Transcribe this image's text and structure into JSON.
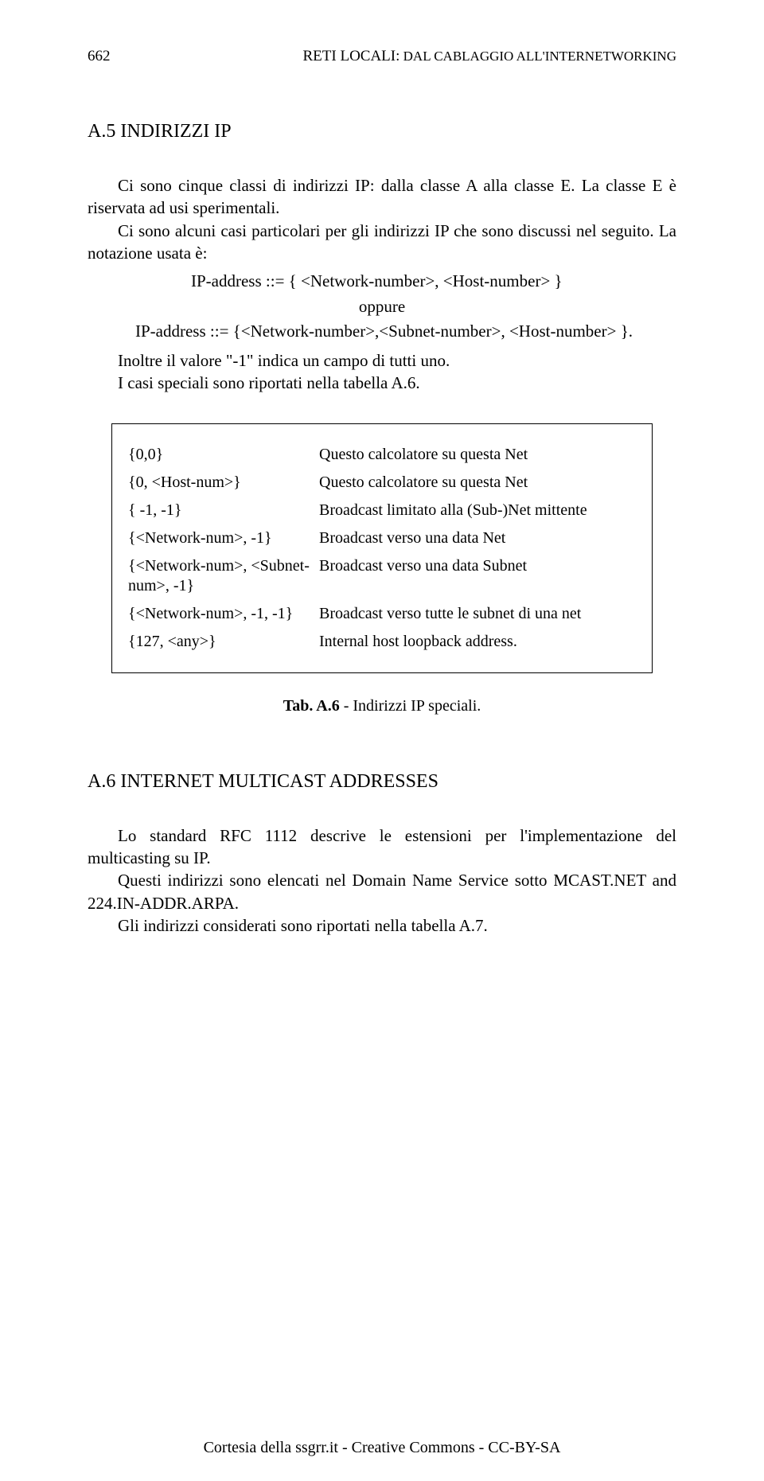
{
  "header": {
    "page_number": "662",
    "running_title_part1": "RETI LOCALI:",
    "running_title_part2": " DAL CABLAGGIO ALL'INTERNETWORKING"
  },
  "sectionA5": {
    "heading": "A.5 INDIRIZZI IP",
    "p1": "Ci sono cinque classi di indirizzi IP: dalla classe A alla classe E. La classe E è riservata ad usi sperimentali.",
    "p2": "Ci sono alcuni casi particolari per gli indirizzi IP che sono discussi nel seguito. La notazione usata è:",
    "notation_line1": "IP-address ::= { <Network-number>, <Host-number> }",
    "notation_oppure": "oppure",
    "notation_line3": "IP-address ::= {<Network-number>,<Subnet-number>, <Host-number> }.",
    "p3": "Inoltre il valore \"-1\" indica un campo di tutti uno.",
    "p4": "I casi speciali sono riportati nella tabella A.6."
  },
  "tableA6": {
    "rows": [
      {
        "left": "{0,0}",
        "right": "Questo calcolatore su questa Net"
      },
      {
        "left": "{0, <Host-num>}",
        "right": "Questo calcolatore su questa Net"
      },
      {
        "left": "{ -1, -1}",
        "right": "Broadcast limitato alla (Sub-)Net mittente"
      },
      {
        "left": "{<Network-num>, -1}",
        "right": "Broadcast verso una data Net"
      },
      {
        "left": "{<Network-num>, <Subnet-num>, -1}",
        "right": "Broadcast verso una data Subnet"
      },
      {
        "left": "{<Network-num>, -1, -1}",
        "right": "Broadcast verso tutte le subnet di una net"
      },
      {
        "left": "{127, <any>}",
        "right": "Internal host loopback address."
      }
    ],
    "caption_bold": "Tab. A.6",
    "caption_rest": " - Indirizzi IP speciali."
  },
  "sectionA6": {
    "heading": "A.6 INTERNET MULTICAST ADDRESSES",
    "p1": "Lo standard RFC 1112 descrive le estensioni per l'implementazione del multicasting su IP.",
    "p2": "Questi indirizzi sono elencati nel Domain Name Service sotto MCAST.NET and 224.IN-ADDR.ARPA.",
    "p3": "Gli indirizzi considerati sono riportati nella tabella A.7."
  },
  "footer": {
    "text": "Cortesia della ssgrr.it - Creative Commons - CC-BY-SA"
  }
}
